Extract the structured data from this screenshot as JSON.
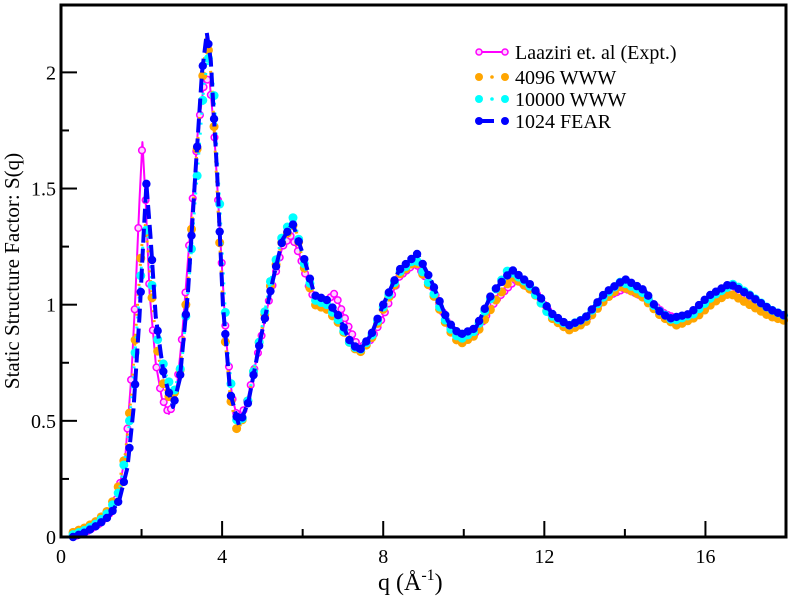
{
  "chart_data": {
    "type": "line",
    "title": "",
    "xlabel": "q (Å",
    "xlabel_sup": "-1",
    "xlabel_close": ")",
    "ylabel": "Static Structure Factor: S(q)",
    "xlim": [
      0,
      18
    ],
    "ylim": [
      0,
      2.29
    ],
    "x_ticks": [
      0,
      4,
      8,
      12,
      16
    ],
    "x_tick_labels": [
      "0",
      "4",
      "8",
      "12",
      "16"
    ],
    "x_minor_ticks": [
      2,
      6,
      10,
      14
    ],
    "y_ticks": [
      0,
      0.5,
      1,
      1.5,
      2
    ],
    "y_tick_labels": [
      "0",
      "0.5",
      "1",
      "1.5",
      "2"
    ],
    "y_minor_ticks": [
      0.25,
      0.75,
      1.25,
      1.75
    ],
    "grid": false,
    "legend_position": "top-right",
    "series": [
      {
        "name": "Laaziri et. al (Expt.)",
        "color": "#ff00ff",
        "style": "solid-open-circles",
        "points": [
          [
            0.3,
            0.0
          ],
          [
            0.6,
            0.02
          ],
          [
            0.9,
            0.05
          ],
          [
            1.2,
            0.1
          ],
          [
            1.4,
            0.17
          ],
          [
            1.6,
            0.35
          ],
          [
            1.75,
            0.7
          ],
          [
            1.85,
            1.05
          ],
          [
            1.95,
            1.45
          ],
          [
            2.02,
            1.7
          ],
          [
            2.1,
            1.45
          ],
          [
            2.2,
            1.05
          ],
          [
            2.35,
            0.75
          ],
          [
            2.5,
            0.6
          ],
          [
            2.68,
            0.53
          ],
          [
            2.85,
            0.6
          ],
          [
            3.0,
            0.85
          ],
          [
            3.2,
            1.3
          ],
          [
            3.4,
            1.75
          ],
          [
            3.55,
            1.95
          ],
          [
            3.68,
            1.98
          ],
          [
            3.8,
            1.75
          ],
          [
            3.95,
            1.3
          ],
          [
            4.1,
            0.85
          ],
          [
            4.25,
            0.6
          ],
          [
            4.4,
            0.5
          ],
          [
            4.6,
            0.57
          ],
          [
            4.9,
            0.8
          ],
          [
            5.2,
            1.05
          ],
          [
            5.5,
            1.25
          ],
          [
            5.72,
            1.3
          ],
          [
            5.95,
            1.2
          ],
          [
            6.2,
            1.05
          ],
          [
            6.5,
            1.0
          ],
          [
            6.8,
            1.05
          ],
          [
            7.1,
            0.92
          ],
          [
            7.4,
            0.81
          ],
          [
            7.7,
            0.85
          ],
          [
            8.0,
            0.95
          ],
          [
            8.4,
            1.12
          ],
          [
            8.8,
            1.18
          ],
          [
            9.2,
            1.08
          ],
          [
            9.6,
            0.92
          ],
          [
            9.9,
            0.86
          ],
          [
            10.3,
            0.88
          ],
          [
            10.8,
            1.02
          ],
          [
            11.3,
            1.11
          ],
          [
            11.8,
            1.05
          ],
          [
            12.2,
            0.95
          ],
          [
            12.6,
            0.9
          ],
          [
            13.0,
            0.93
          ],
          [
            13.5,
            1.03
          ],
          [
            14.0,
            1.07
          ],
          [
            14.5,
            1.03
          ],
          [
            15.0,
            0.96
          ],
          [
            15.3,
            0.94
          ],
          [
            15.8,
            0.97
          ],
          [
            16.3,
            1.03
          ],
          [
            16.7,
            1.06
          ],
          [
            17.2,
            1.02
          ],
          [
            17.6,
            0.97
          ],
          [
            18.0,
            0.95
          ]
        ]
      },
      {
        "name": "4096 WWW",
        "color": "#ffa500",
        "style": "dotted-filled-circles",
        "points": [
          [
            0.3,
            0.02
          ],
          [
            0.6,
            0.04
          ],
          [
            0.9,
            0.07
          ],
          [
            1.2,
            0.12
          ],
          [
            1.4,
            0.2
          ],
          [
            1.6,
            0.36
          ],
          [
            1.75,
            0.62
          ],
          [
            1.9,
            1.0
          ],
          [
            2.0,
            1.25
          ],
          [
            2.1,
            1.35
          ],
          [
            2.2,
            1.15
          ],
          [
            2.35,
            0.85
          ],
          [
            2.55,
            0.65
          ],
          [
            2.75,
            0.58
          ],
          [
            2.95,
            0.7
          ],
          [
            3.15,
            1.1
          ],
          [
            3.35,
            1.6
          ],
          [
            3.5,
            1.95
          ],
          [
            3.62,
            2.16
          ],
          [
            3.75,
            1.95
          ],
          [
            3.9,
            1.4
          ],
          [
            4.05,
            0.9
          ],
          [
            4.2,
            0.6
          ],
          [
            4.38,
            0.45
          ],
          [
            4.6,
            0.55
          ],
          [
            4.9,
            0.82
          ],
          [
            5.2,
            1.08
          ],
          [
            5.5,
            1.28
          ],
          [
            5.8,
            1.35
          ],
          [
            6.05,
            1.15
          ],
          [
            6.3,
            1.0
          ],
          [
            6.6,
            0.98
          ],
          [
            6.9,
            0.92
          ],
          [
            7.15,
            0.84
          ],
          [
            7.4,
            0.79
          ],
          [
            7.7,
            0.85
          ],
          [
            8.0,
            0.98
          ],
          [
            8.4,
            1.13
          ],
          [
            8.8,
            1.19
          ],
          [
            9.2,
            1.06
          ],
          [
            9.6,
            0.9
          ],
          [
            9.9,
            0.83
          ],
          [
            10.3,
            0.87
          ],
          [
            10.8,
            1.02
          ],
          [
            11.2,
            1.12
          ],
          [
            11.7,
            1.06
          ],
          [
            12.2,
            0.94
          ],
          [
            12.6,
            0.89
          ],
          [
            13.0,
            0.92
          ],
          [
            13.5,
            1.02
          ],
          [
            13.9,
            1.08
          ],
          [
            14.4,
            1.04
          ],
          [
            14.9,
            0.95
          ],
          [
            15.3,
            0.91
          ],
          [
            15.8,
            0.95
          ],
          [
            16.2,
            1.01
          ],
          [
            16.6,
            1.05
          ],
          [
            17.1,
            1.0
          ],
          [
            17.6,
            0.95
          ],
          [
            18.0,
            0.93
          ]
        ]
      },
      {
        "name": "10000 WWW",
        "color": "#00ffff",
        "style": "dotted-filled-circles",
        "points": [
          [
            0.3,
            0.01
          ],
          [
            0.6,
            0.03
          ],
          [
            0.9,
            0.06
          ],
          [
            1.2,
            0.11
          ],
          [
            1.45,
            0.2
          ],
          [
            1.65,
            0.4
          ],
          [
            1.8,
            0.7
          ],
          [
            1.95,
            1.05
          ],
          [
            2.05,
            1.3
          ],
          [
            2.15,
            1.33
          ],
          [
            2.25,
            1.1
          ],
          [
            2.4,
            0.85
          ],
          [
            2.6,
            0.7
          ],
          [
            2.8,
            0.62
          ],
          [
            3.0,
            0.75
          ],
          [
            3.2,
            1.15
          ],
          [
            3.4,
            1.6
          ],
          [
            3.55,
            1.95
          ],
          [
            3.7,
            2.1
          ],
          [
            3.8,
            1.9
          ],
          [
            3.95,
            1.4
          ],
          [
            4.1,
            0.9
          ],
          [
            4.25,
            0.6
          ],
          [
            4.4,
            0.47
          ],
          [
            4.6,
            0.55
          ],
          [
            4.9,
            0.82
          ],
          [
            5.2,
            1.1
          ],
          [
            5.5,
            1.3
          ],
          [
            5.78,
            1.38
          ],
          [
            6.0,
            1.2
          ],
          [
            6.3,
            1.02
          ],
          [
            6.6,
            1.0
          ],
          [
            6.9,
            0.93
          ],
          [
            7.15,
            0.84
          ],
          [
            7.4,
            0.8
          ],
          [
            7.7,
            0.86
          ],
          [
            8.0,
            0.99
          ],
          [
            8.4,
            1.14
          ],
          [
            8.8,
            1.2
          ],
          [
            9.2,
            1.07
          ],
          [
            9.6,
            0.91
          ],
          [
            9.9,
            0.85
          ],
          [
            10.3,
            0.89
          ],
          [
            10.7,
            1.04
          ],
          [
            11.1,
            1.15
          ],
          [
            11.6,
            1.09
          ],
          [
            12.1,
            0.96
          ],
          [
            12.6,
            0.91
          ],
          [
            13.0,
            0.94
          ],
          [
            13.5,
            1.04
          ],
          [
            13.9,
            1.1
          ],
          [
            14.4,
            1.06
          ],
          [
            14.8,
            0.98
          ],
          [
            15.2,
            0.93
          ],
          [
            15.7,
            0.96
          ],
          [
            16.2,
            1.04
          ],
          [
            16.7,
            1.09
          ],
          [
            17.2,
            1.03
          ],
          [
            17.6,
            0.98
          ],
          [
            18.0,
            0.95
          ]
        ]
      },
      {
        "name": "1024 FEAR",
        "color": "#0000ff",
        "style": "dashed-filled-circles",
        "points": [
          [
            0.3,
            0.0
          ],
          [
            0.6,
            0.02
          ],
          [
            0.9,
            0.05
          ],
          [
            1.2,
            0.09
          ],
          [
            1.45,
            0.16
          ],
          [
            1.65,
            0.3
          ],
          [
            1.8,
            0.55
          ],
          [
            1.95,
            0.95
          ],
          [
            2.05,
            1.3
          ],
          [
            2.12,
            1.52
          ],
          [
            2.22,
            1.3
          ],
          [
            2.35,
            0.95
          ],
          [
            2.55,
            0.7
          ],
          [
            2.78,
            0.56
          ],
          [
            2.95,
            0.68
          ],
          [
            3.15,
            1.05
          ],
          [
            3.35,
            1.6
          ],
          [
            3.5,
            2.0
          ],
          [
            3.62,
            2.17
          ],
          [
            3.72,
            2.05
          ],
          [
            3.88,
            1.55
          ],
          [
            4.02,
            1.0
          ],
          [
            4.2,
            0.62
          ],
          [
            4.42,
            0.48
          ],
          [
            4.65,
            0.58
          ],
          [
            4.95,
            0.85
          ],
          [
            5.25,
            1.1
          ],
          [
            5.5,
            1.28
          ],
          [
            5.75,
            1.35
          ],
          [
            6.0,
            1.22
          ],
          [
            6.3,
            1.04
          ],
          [
            6.6,
            1.02
          ],
          [
            6.9,
            0.95
          ],
          [
            7.15,
            0.85
          ],
          [
            7.4,
            0.8
          ],
          [
            7.7,
            0.87
          ],
          [
            8.0,
            1.0
          ],
          [
            8.4,
            1.15
          ],
          [
            8.85,
            1.22
          ],
          [
            9.2,
            1.1
          ],
          [
            9.6,
            0.93
          ],
          [
            9.9,
            0.87
          ],
          [
            10.3,
            0.9
          ],
          [
            10.7,
            1.05
          ],
          [
            11.2,
            1.15
          ],
          [
            11.7,
            1.08
          ],
          [
            12.2,
            0.96
          ],
          [
            12.6,
            0.91
          ],
          [
            13.0,
            0.94
          ],
          [
            13.5,
            1.05
          ],
          [
            14.0,
            1.11
          ],
          [
            14.5,
            1.06
          ],
          [
            14.8,
            0.98
          ],
          [
            15.1,
            0.94
          ],
          [
            15.6,
            0.96
          ],
          [
            16.1,
            1.04
          ],
          [
            16.6,
            1.09
          ],
          [
            17.1,
            1.04
          ],
          [
            17.6,
            0.98
          ],
          [
            18.0,
            0.95
          ]
        ]
      }
    ]
  }
}
